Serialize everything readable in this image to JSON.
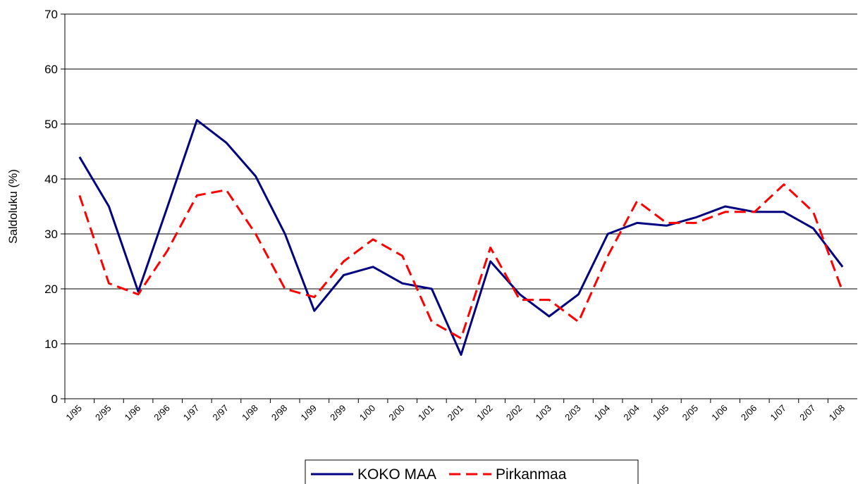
{
  "chart_data": {
    "type": "line",
    "y_label": "Saldoluku (%)",
    "categories": [
      "1/95",
      "2/95",
      "1/96",
      "2/96",
      "1/97",
      "2/97",
      "1/98",
      "2/98",
      "1/99",
      "2/99",
      "1/00",
      "2/00",
      "1/01",
      "2/01",
      "1/02",
      "2/02",
      "1/03",
      "2/03",
      "1/04",
      "2/04",
      "1/05",
      "2/05",
      "1/06",
      "2/06",
      "1/07",
      "2/07",
      "1/08"
    ],
    "series": [
      {
        "name": "KOKO MAA",
        "color": "#000080",
        "dash": false,
        "values": [
          44,
          35,
          19.5,
          35,
          50.7,
          46.6,
          40.5,
          30,
          16,
          22.5,
          24,
          21,
          20,
          8,
          25,
          19,
          15,
          19,
          30,
          32,
          31.5,
          33,
          35,
          34,
          34,
          31,
          24
        ]
      },
      {
        "name": "Pirkanmaa",
        "color": "#ff0000",
        "dash": true,
        "values": [
          37,
          21,
          19,
          27,
          37,
          38,
          30,
          20,
          18.5,
          25,
          29,
          26,
          14,
          11,
          27.5,
          18,
          18,
          14,
          26,
          36,
          32,
          32,
          34,
          34,
          39,
          34,
          19.5
        ]
      }
    ],
    "ylim": [
      0,
      70
    ],
    "yticks": [
      0,
      10,
      20,
      30,
      40,
      50,
      60,
      70
    ],
    "grid": true,
    "legend": "bottom"
  }
}
